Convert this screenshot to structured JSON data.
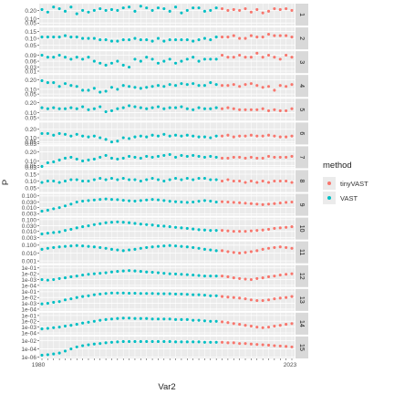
{
  "chart_data": {
    "type": "scatter",
    "xlabel": "Var2",
    "ylabel": "P",
    "x_first_tick": "1980",
    "x_last_tick": "2023",
    "x_range": [
      1980,
      2023
    ],
    "legend": {
      "title": "method",
      "position": "right",
      "entries": [
        {
          "label": "tinyVAST",
          "color": "#F8766D"
        },
        {
          "label": "VAST",
          "color": "#00BFC4"
        }
      ]
    },
    "vast_years": [
      1980,
      2011
    ],
    "tinyvast_years": [
      2011,
      2023
    ],
    "panels": [
      {
        "strip": "1",
        "log": false,
        "yticks": [
          "0.20",
          "0.10",
          "0.05"
        ],
        "yrange": [
          0.02,
          0.28
        ],
        "vast": [
          0.21,
          0.18,
          0.24,
          0.22,
          0.19,
          0.24,
          0.16,
          0.2,
          0.18,
          0.2,
          0.22,
          0.2,
          0.21,
          0.2,
          0.23,
          0.24,
          0.19,
          0.25,
          0.23,
          0.2,
          0.23,
          0.22,
          0.19,
          0.24,
          0.17,
          0.2,
          0.23,
          0.23,
          0.19,
          0.2,
          0.23
        ],
        "tiny": [
          0.22,
          0.2,
          0.21,
          0.2,
          0.22,
          0.18,
          0.21,
          0.17,
          0.19,
          0.22,
          0.21,
          0.22,
          0.2
        ]
      },
      {
        "strip": "2",
        "log": false,
        "yticks": [
          "0.15",
          "0.10",
          "0.05"
        ],
        "yrange": [
          0.02,
          0.18
        ],
        "vast": [
          0.11,
          0.11,
          0.11,
          0.11,
          0.12,
          0.11,
          0.11,
          0.1,
          0.1,
          0.1,
          0.09,
          0.09,
          0.08,
          0.08,
          0.09,
          0.09,
          0.1,
          0.09,
          0.09,
          0.08,
          0.1,
          0.08,
          0.09,
          0.09,
          0.09,
          0.09,
          0.08,
          0.09,
          0.1,
          0.09,
          0.11
        ],
        "tiny": [
          0.11,
          0.11,
          0.12,
          0.1,
          0.1,
          0.12,
          0.11,
          0.11,
          0.13,
          0.12,
          0.12,
          0.12,
          0.11
        ]
      },
      {
        "strip": "3",
        "log": false,
        "yticks": [
          "0.09",
          "0.06",
          "0.03",
          "0.01"
        ],
        "yrange": [
          0.0,
          0.11
        ],
        "vast": [
          0.09,
          0.08,
          0.08,
          0.09,
          0.08,
          0.07,
          0.08,
          0.07,
          0.08,
          0.06,
          0.05,
          0.04,
          0.05,
          0.06,
          0.04,
          0.03,
          0.07,
          0.06,
          0.08,
          0.07,
          0.05,
          0.06,
          0.07,
          0.05,
          0.06,
          0.07,
          0.08,
          0.06,
          0.07,
          0.07,
          0.07
        ],
        "tiny": [
          0.09,
          0.08,
          0.08,
          0.09,
          0.08,
          0.08,
          0.1,
          0.08,
          0.09,
          0.08,
          0.07,
          0.09,
          0.08
        ]
      },
      {
        "strip": "4",
        "log": false,
        "yticks": [
          "0.20",
          "0.10",
          "0.05"
        ],
        "yrange": [
          0.02,
          0.25
        ],
        "vast": [
          0.19,
          0.17,
          0.17,
          0.13,
          0.16,
          0.14,
          0.13,
          0.09,
          0.09,
          0.11,
          0.07,
          0.08,
          0.12,
          0.1,
          0.14,
          0.13,
          0.12,
          0.11,
          0.12,
          0.13,
          0.14,
          0.13,
          0.15,
          0.14,
          0.16,
          0.15,
          0.16,
          0.14,
          0.14,
          0.17,
          0.15
        ],
        "tiny": [
          0.14,
          0.14,
          0.15,
          0.13,
          0.15,
          0.16,
          0.14,
          0.12,
          0.13,
          0.09,
          0.14,
          0.13,
          0.15
        ]
      },
      {
        "strip": "5",
        "log": false,
        "yticks": [
          "0.20",
          "0.10",
          "0.05"
        ],
        "yrange": [
          0.02,
          0.24
        ],
        "vast": [
          0.15,
          0.14,
          0.15,
          0.14,
          0.14,
          0.15,
          0.14,
          0.16,
          0.13,
          0.14,
          0.16,
          0.11,
          0.12,
          0.14,
          0.15,
          0.17,
          0.16,
          0.15,
          0.14,
          0.15,
          0.16,
          0.14,
          0.15,
          0.15,
          0.16,
          0.14,
          0.13,
          0.15,
          0.14,
          0.14,
          0.15
        ],
        "tiny": [
          0.14,
          0.15,
          0.14,
          0.13,
          0.13,
          0.13,
          0.13,
          0.14,
          0.12,
          0.13,
          0.12,
          0.12,
          0.14
        ]
      },
      {
        "strip": "6",
        "log": false,
        "yticks": [
          "0.20",
          "0.10",
          "0.05",
          "0.03"
        ],
        "yrange": [
          0.02,
          0.28
        ],
        "vast": [
          0.15,
          0.15,
          0.13,
          0.15,
          0.14,
          0.12,
          0.14,
          0.12,
          0.11,
          0.12,
          0.1,
          0.08,
          0.05,
          0.06,
          0.1,
          0.09,
          0.11,
          0.12,
          0.11,
          0.13,
          0.12,
          0.14,
          0.12,
          0.13,
          0.12,
          0.13,
          0.12,
          0.11,
          0.11,
          0.1,
          0.12
        ],
        "tiny": [
          0.12,
          0.13,
          0.11,
          0.12,
          0.12,
          0.13,
          0.12,
          0.12,
          0.13,
          0.12,
          0.11,
          0.11,
          0.12
        ]
      },
      {
        "strip": "7",
        "log": false,
        "yticks": [
          "0.20",
          "0.10",
          "0.05",
          "0.03"
        ],
        "yrange": [
          0.02,
          0.26
        ],
        "vast": [
          0.04,
          0.08,
          0.09,
          0.11,
          0.13,
          0.14,
          0.12,
          0.1,
          0.11,
          0.12,
          0.14,
          0.16,
          0.13,
          0.12,
          0.13,
          0.15,
          0.14,
          0.13,
          0.15,
          0.14,
          0.15,
          0.16,
          0.17,
          0.14,
          0.16,
          0.15,
          0.16,
          0.15,
          0.14,
          0.15,
          0.14
        ],
        "tiny": [
          0.13,
          0.13,
          0.14,
          0.14,
          0.13,
          0.14,
          0.13,
          0.13,
          0.15,
          0.14,
          0.14,
          0.14,
          0.15
        ]
      },
      {
        "strip": "8",
        "log": false,
        "yticks": [
          "0.15",
          "0.10",
          "0.05"
        ],
        "yrange": [
          0.02,
          0.18
        ],
        "vast": [
          0.09,
          0.1,
          0.1,
          0.09,
          0.1,
          0.11,
          0.11,
          0.1,
          0.1,
          0.11,
          0.12,
          0.11,
          0.12,
          0.11,
          0.12,
          0.11,
          0.11,
          0.1,
          0.11,
          0.12,
          0.11,
          0.1,
          0.11,
          0.12,
          0.11,
          0.12,
          0.11,
          0.12,
          0.12,
          0.11,
          0.11
        ],
        "tiny": [
          0.1,
          0.11,
          0.1,
          0.1,
          0.09,
          0.1,
          0.09,
          0.1,
          0.09,
          0.1,
          0.1,
          0.1,
          0.09
        ]
      },
      {
        "strip": "9",
        "log": true,
        "yticks": [
          "0.100",
          "0.030",
          "0.010",
          "0.003"
        ],
        "yrange": [
          0.002,
          0.15
        ],
        "vast": [
          0.005,
          0.006,
          0.008,
          0.01,
          0.014,
          0.02,
          0.03,
          0.036,
          0.04,
          0.045,
          0.05,
          0.055,
          0.05,
          0.048,
          0.042,
          0.038,
          0.036,
          0.04,
          0.045,
          0.05,
          0.046,
          0.04,
          0.035,
          0.032,
          0.03,
          0.028,
          0.03,
          0.035,
          0.04,
          0.036,
          0.03
        ],
        "tiny": [
          0.032,
          0.03,
          0.028,
          0.026,
          0.024,
          0.022,
          0.02,
          0.018,
          0.02,
          0.022,
          0.025,
          0.028,
          0.03
        ]
      },
      {
        "strip": "10",
        "log": true,
        "yticks": [
          "0.100",
          "0.030",
          "0.010",
          "0.003"
        ],
        "yrange": [
          0.002,
          0.15
        ],
        "vast": [
          0.006,
          0.007,
          0.008,
          0.009,
          0.012,
          0.015,
          0.02,
          0.025,
          0.03,
          0.038,
          0.045,
          0.055,
          0.06,
          0.065,
          0.06,
          0.055,
          0.048,
          0.042,
          0.038,
          0.035,
          0.03,
          0.028,
          0.025,
          0.022,
          0.02,
          0.018,
          0.016,
          0.014,
          0.013,
          0.012,
          0.012
        ],
        "tiny": [
          0.012,
          0.011,
          0.01,
          0.01,
          0.01,
          0.011,
          0.012,
          0.013,
          0.015,
          0.018,
          0.02,
          0.022,
          0.025
        ]
      },
      {
        "strip": "11",
        "log": true,
        "yticks": [
          "0.100",
          "0.010",
          "0.001"
        ],
        "yrange": [
          0.0005,
          0.3
        ],
        "vast": [
          0.03,
          0.04,
          0.05,
          0.06,
          0.07,
          0.08,
          0.09,
          0.08,
          0.07,
          0.06,
          0.05,
          0.04,
          0.03,
          0.025,
          0.02,
          0.025,
          0.03,
          0.04,
          0.05,
          0.06,
          0.07,
          0.08,
          0.09,
          0.08,
          0.07,
          0.06,
          0.05,
          0.04,
          0.03,
          0.025,
          0.02
        ],
        "tiny": [
          0.02,
          0.015,
          0.012,
          0.01,
          0.012,
          0.015,
          0.02,
          0.03,
          0.04,
          0.05,
          0.06,
          0.05,
          0.04
        ]
      },
      {
        "strip": "12",
        "log": true,
        "yticks": [
          "1e-01",
          "1e-02",
          "1e-03",
          "1e-04"
        ],
        "yrange": [
          5e-05,
          0.3
        ],
        "vast": [
          0.001,
          0.0008,
          0.001,
          0.0015,
          0.002,
          0.003,
          0.004,
          0.006,
          0.008,
          0.01,
          0.012,
          0.015,
          0.02,
          0.025,
          0.03,
          0.035,
          0.03,
          0.025,
          0.02,
          0.018,
          0.015,
          0.012,
          0.01,
          0.009,
          0.008,
          0.007,
          0.006,
          0.005,
          0.004,
          0.004,
          0.004
        ],
        "tiny": [
          0.004,
          0.003,
          0.002,
          0.0015,
          0.0012,
          0.001,
          0.0015,
          0.002,
          0.003,
          0.004,
          0.006,
          0.008,
          0.01
        ]
      },
      {
        "strip": "13",
        "log": true,
        "yticks": [
          "1e-01",
          "1e-02",
          "1e-03",
          "1e-04"
        ],
        "yrange": [
          5e-05,
          0.3
        ],
        "vast": [
          0.0008,
          0.001,
          0.0015,
          0.002,
          0.004,
          0.006,
          0.01,
          0.015,
          0.02,
          0.03,
          0.04,
          0.05,
          0.06,
          0.06,
          0.06,
          0.055,
          0.055,
          0.05,
          0.05,
          0.05,
          0.045,
          0.045,
          0.045,
          0.04,
          0.04,
          0.035,
          0.03,
          0.03,
          0.025,
          0.02,
          0.02
        ],
        "tiny": [
          0.015,
          0.012,
          0.01,
          0.008,
          0.006,
          0.004,
          0.003,
          0.003,
          0.004,
          0.006,
          0.008,
          0.01,
          0.015
        ]
      },
      {
        "strip": "14",
        "log": true,
        "yticks": [
          "1e-01",
          "1e-02",
          "1e-03",
          "1e-04"
        ],
        "yrange": [
          5e-05,
          0.3
        ],
        "vast": [
          0.0005,
          0.0006,
          0.0008,
          0.001,
          0.0015,
          0.002,
          0.003,
          0.005,
          0.007,
          0.01,
          0.015,
          0.02,
          0.025,
          0.03,
          0.035,
          0.035,
          0.03,
          0.03,
          0.03,
          0.025,
          0.025,
          0.025,
          0.025,
          0.02,
          0.02,
          0.02,
          0.015,
          0.015,
          0.012,
          0.01,
          0.01
        ],
        "tiny": [
          0.008,
          0.006,
          0.004,
          0.003,
          0.002,
          0.0015,
          0.001,
          0.0008,
          0.001,
          0.0015,
          0.002,
          0.003,
          0.004
        ]
      },
      {
        "strip": "15",
        "log": true,
        "yticks": [
          "1e-02",
          "1e-04",
          "1e-06"
        ],
        "yrange": [
          5e-07,
          0.1
        ],
        "vast": [
          3e-06,
          4e-06,
          6e-06,
          1e-05,
          3e-05,
          0.0001,
          0.0003,
          0.0006,
          0.001,
          0.0015,
          0.002,
          0.003,
          0.004,
          0.005,
          0.006,
          0.006,
          0.006,
          0.006,
          0.006,
          0.006,
          0.006,
          0.006,
          0.006,
          0.005,
          0.005,
          0.005,
          0.005,
          0.005,
          0.004,
          0.004,
          0.004
        ],
        "tiny": [
          0.004,
          0.003,
          0.003,
          0.002,
          0.002,
          0.0015,
          0.0012,
          0.001,
          0.0008,
          0.0006,
          0.0005,
          0.0004,
          0.0003
        ]
      }
    ]
  }
}
